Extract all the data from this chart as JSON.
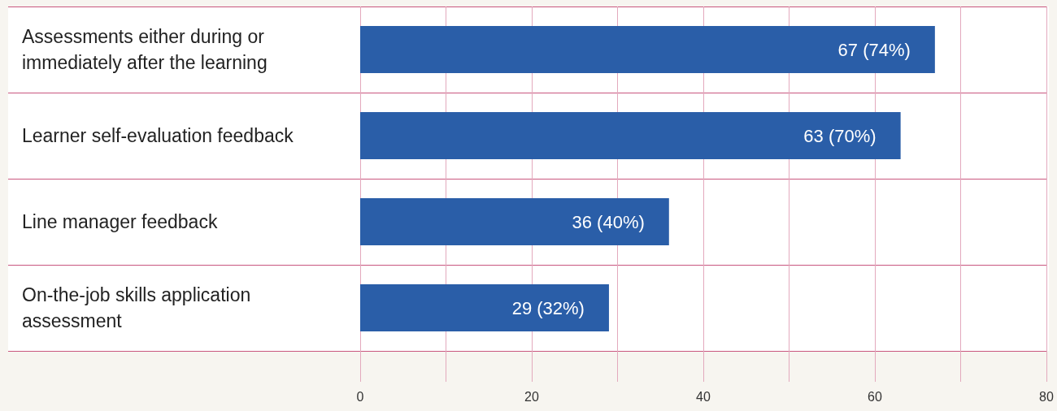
{
  "chart_data": {
    "type": "bar",
    "orientation": "horizontal",
    "categories": [
      "Assessments either during or immediately after the learning",
      "Learner self-evaluation feedback",
      "Line manager feedback",
      "On-the-job skills application assessment"
    ],
    "values": [
      67,
      63,
      36,
      29
    ],
    "value_labels": [
      "67 (74%)",
      "63 (70%)",
      "36 (40%)",
      "29 (32%)"
    ],
    "color": "#2a5ea8",
    "xlim": [
      0,
      80
    ],
    "xticks": [
      0,
      {
        "value": 10,
        "label": null
      },
      20,
      {
        "value": 30,
        "label": null
      },
      40,
      {
        "value": 50,
        "label": null
      },
      60,
      {
        "value": 70,
        "label": null
      },
      80
    ],
    "grid": "x"
  }
}
